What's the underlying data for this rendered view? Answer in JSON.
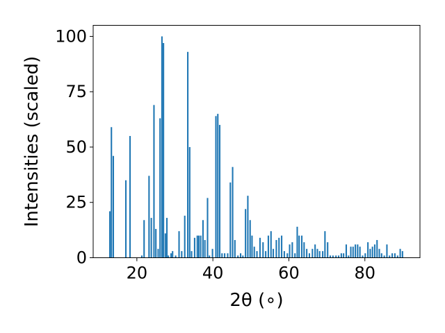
{
  "chart_data": {
    "type": "bar",
    "title": "",
    "xlabel": "2θ (∘)",
    "ylabel": "Intensities (scaled)",
    "xlim": [
      8.5,
      94.5
    ],
    "ylim": [
      0,
      105
    ],
    "xticks": [
      20,
      40,
      60,
      80
    ],
    "yticks": [
      0,
      25,
      50,
      75,
      100
    ],
    "bar_color": "#1f77b4",
    "bar_width": 0.38,
    "grid": false,
    "legend": "none",
    "series": [
      {
        "x": [
          12.9,
          13.3,
          13.8,
          17.1,
          18.2,
          21.3,
          21.9,
          23.2,
          23.8,
          24.5,
          25.0,
          25.6,
          26.1,
          26.6,
          27.0,
          27.5,
          27.9,
          28.3,
          29.0,
          29.4,
          30.2,
          31.1,
          31.8,
          32.6,
          33.4,
          33.9,
          34.4,
          35.2,
          35.9,
          36.3,
          36.8,
          37.4,
          37.9,
          38.6,
          39.1,
          39.9,
          40.8,
          41.3,
          41.8,
          42.4,
          43.1,
          43.9,
          44.6,
          45.2,
          45.8,
          46.6,
          47.3,
          47.9,
          48.6,
          49.2,
          49.8,
          50.3,
          50.9,
          51.6,
          52.4,
          53.2,
          53.9,
          54.6,
          55.3,
          55.9,
          56.7,
          57.4,
          58.1,
          58.8,
          59.6,
          60.2,
          60.9,
          61.6,
          62.2,
          62.7,
          63.4,
          64.0,
          64.7,
          65.4,
          66.2,
          66.9,
          67.5,
          68.1,
          68.9,
          69.5,
          70.2,
          70.9,
          71.6,
          72.4,
          73.1,
          73.8,
          74.4,
          75.1,
          75.7,
          76.3,
          76.9,
          77.5,
          78.1,
          78.7,
          79.4,
          80.1,
          80.8,
          81.4,
          82.0,
          82.6,
          83.2,
          83.8,
          84.4,
          85.1,
          85.8,
          86.5,
          87.2,
          87.9,
          88.6,
          89.3,
          89.9
        ],
        "values": [
          21,
          59,
          46,
          35,
          55,
          1,
          17,
          37,
          18,
          69,
          13,
          4,
          63,
          100,
          97,
          11,
          18,
          1,
          2,
          3,
          1,
          12,
          3,
          19,
          93,
          50,
          3,
          9,
          10,
          10,
          10,
          17,
          8,
          27,
          1,
          4,
          64,
          65,
          60,
          2,
          2,
          2,
          34,
          41,
          8,
          1,
          2,
          1,
          22,
          28,
          17,
          10,
          5,
          3,
          9,
          7,
          3,
          10,
          12,
          4,
          8,
          9,
          10,
          3,
          2,
          6,
          7,
          2,
          14,
          10,
          10,
          7,
          4,
          2,
          4,
          6,
          4,
          3,
          3,
          12,
          7,
          1,
          1,
          1,
          1,
          2,
          2,
          6,
          1,
          5,
          5,
          6,
          6,
          5,
          1,
          2,
          7,
          4,
          5,
          6,
          8,
          4,
          2,
          1,
          6,
          1,
          2,
          2,
          1,
          4,
          3
        ]
      }
    ]
  }
}
